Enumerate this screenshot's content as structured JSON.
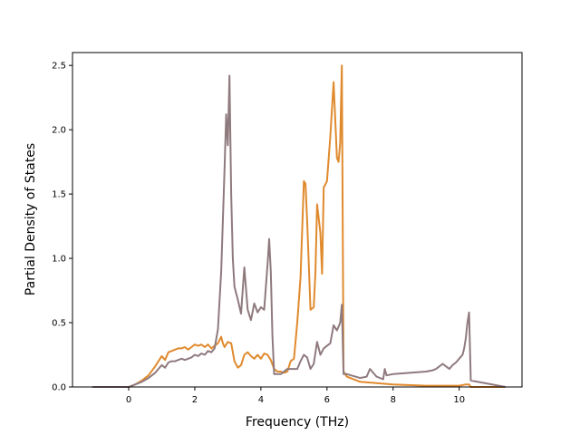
{
  "chart_data": {
    "type": "line",
    "title": "",
    "xlabel": "Frequency (THz)",
    "ylabel": "Partial Density of States",
    "xlim": [
      -1.7,
      11.9
    ],
    "ylim": [
      0,
      2.6
    ],
    "xticks": [
      0,
      2,
      4,
      6,
      8,
      10
    ],
    "yticks": [
      0.0,
      0.5,
      1.0,
      1.5,
      2.0,
      2.5
    ],
    "xtick_labels": [
      "0",
      "2",
      "4",
      "6",
      "8",
      "10"
    ],
    "ytick_labels": [
      "0.0",
      "0.5",
      "1.0",
      "1.5",
      "2.0",
      "2.5"
    ],
    "grid": false,
    "legend": null,
    "series": [
      {
        "color": "#e08a2e",
        "x": [
          -1.1,
          0.0,
          0.2,
          0.4,
          0.6,
          0.8,
          0.9,
          1.0,
          1.1,
          1.2,
          1.3,
          1.4,
          1.5,
          1.6,
          1.7,
          1.8,
          1.9,
          2.0,
          2.1,
          2.2,
          2.3,
          2.4,
          2.5,
          2.6,
          2.7,
          2.8,
          2.85,
          2.9,
          3.0,
          3.1,
          3.2,
          3.3,
          3.4,
          3.5,
          3.6,
          3.7,
          3.8,
          3.9,
          4.0,
          4.1,
          4.2,
          4.3,
          4.4,
          4.5,
          4.6,
          4.7,
          4.8,
          4.9,
          5.0,
          5.1,
          5.2,
          5.3,
          5.35,
          5.4,
          5.5,
          5.6,
          5.65,
          5.7,
          5.8,
          5.85,
          5.9,
          6.0,
          6.1,
          6.2,
          6.3,
          6.35,
          6.4,
          6.45,
          6.5,
          6.6,
          7.0,
          8.0,
          9.0,
          10.0,
          10.2,
          10.3,
          10.35,
          11.4
        ],
        "y": [
          0.0,
          0.0,
          0.02,
          0.05,
          0.09,
          0.16,
          0.2,
          0.24,
          0.21,
          0.27,
          0.28,
          0.29,
          0.3,
          0.3,
          0.31,
          0.29,
          0.31,
          0.33,
          0.32,
          0.33,
          0.31,
          0.33,
          0.3,
          0.32,
          0.34,
          0.39,
          0.34,
          0.31,
          0.35,
          0.34,
          0.2,
          0.15,
          0.17,
          0.25,
          0.27,
          0.24,
          0.22,
          0.25,
          0.22,
          0.26,
          0.25,
          0.21,
          0.14,
          0.12,
          0.12,
          0.11,
          0.12,
          0.2,
          0.22,
          0.5,
          0.85,
          1.6,
          1.58,
          1.3,
          0.6,
          0.62,
          0.9,
          1.42,
          1.2,
          0.88,
          1.55,
          1.6,
          1.95,
          2.37,
          1.78,
          1.75,
          1.9,
          2.5,
          0.12,
          0.08,
          0.04,
          0.02,
          0.01,
          0.01,
          0.02,
          0.02,
          0.0,
          0.0
        ]
      },
      {
        "color": "#8f7a7e",
        "x": [
          -1.1,
          0.0,
          0.2,
          0.4,
          0.6,
          0.8,
          0.9,
          1.0,
          1.1,
          1.2,
          1.3,
          1.4,
          1.5,
          1.6,
          1.7,
          1.8,
          1.9,
          2.0,
          2.1,
          2.2,
          2.3,
          2.4,
          2.5,
          2.6,
          2.7,
          2.8,
          2.9,
          2.95,
          3.0,
          3.05,
          3.1,
          3.15,
          3.2,
          3.3,
          3.4,
          3.5,
          3.6,
          3.7,
          3.8,
          3.9,
          4.0,
          4.1,
          4.2,
          4.25,
          4.3,
          4.35,
          4.4,
          4.5,
          4.6,
          4.8,
          4.9,
          5.0,
          5.1,
          5.2,
          5.3,
          5.4,
          5.5,
          5.6,
          5.7,
          5.8,
          5.9,
          6.0,
          6.1,
          6.2,
          6.3,
          6.4,
          6.45,
          6.5,
          6.6,
          7.0,
          7.2,
          7.3,
          7.5,
          7.7,
          7.75,
          7.8,
          8.0,
          8.5,
          9.0,
          9.2,
          9.3,
          9.5,
          9.7,
          9.8,
          9.9,
          10.0,
          10.1,
          10.15,
          10.2,
          10.25,
          10.3,
          10.35,
          11.4
        ],
        "y": [
          0.0,
          0.0,
          0.02,
          0.04,
          0.07,
          0.11,
          0.14,
          0.17,
          0.15,
          0.19,
          0.2,
          0.2,
          0.21,
          0.22,
          0.21,
          0.22,
          0.23,
          0.25,
          0.24,
          0.26,
          0.25,
          0.28,
          0.27,
          0.3,
          0.45,
          0.9,
          1.7,
          2.12,
          1.88,
          2.42,
          1.5,
          1.0,
          0.78,
          0.68,
          0.57,
          0.93,
          0.6,
          0.52,
          0.65,
          0.58,
          0.62,
          0.6,
          0.95,
          1.15,
          0.9,
          0.4,
          0.1,
          0.1,
          0.1,
          0.14,
          0.14,
          0.14,
          0.14,
          0.2,
          0.25,
          0.23,
          0.14,
          0.18,
          0.35,
          0.25,
          0.3,
          0.32,
          0.34,
          0.48,
          0.44,
          0.5,
          0.64,
          0.1,
          0.1,
          0.07,
          0.08,
          0.14,
          0.08,
          0.06,
          0.14,
          0.09,
          0.1,
          0.11,
          0.12,
          0.13,
          0.14,
          0.18,
          0.14,
          0.17,
          0.19,
          0.22,
          0.25,
          0.3,
          0.38,
          0.5,
          0.58,
          0.05,
          0.0
        ]
      }
    ]
  }
}
